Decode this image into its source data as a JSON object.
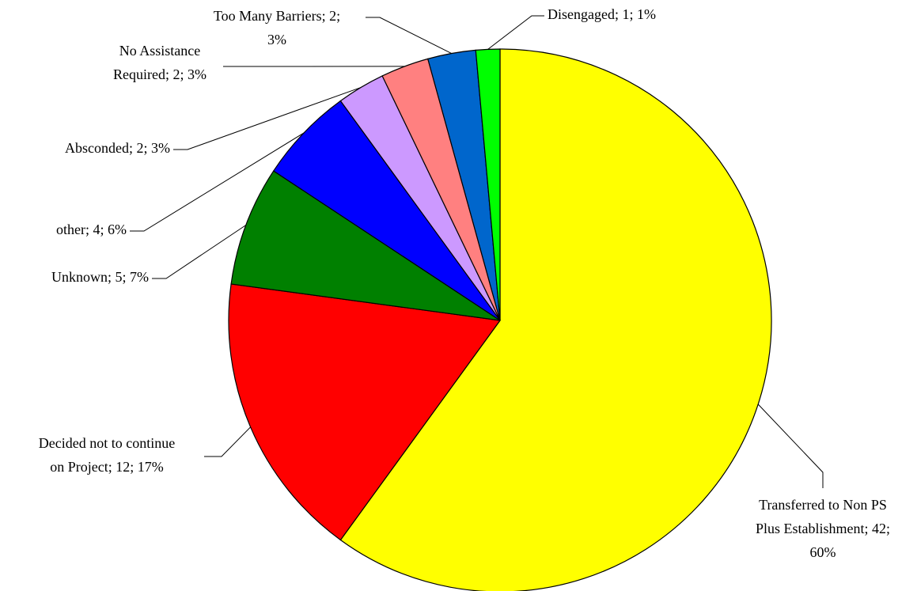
{
  "chart_data": {
    "type": "pie",
    "values": [
      42,
      12,
      5,
      4,
      2,
      2,
      2,
      1
    ],
    "value_labels": [
      [
        "Transferred to Non PS",
        "Plus Establishment; 42;",
        "60%"
      ],
      [
        "Decided not to continue",
        "on Project; 12; 17%"
      ],
      [
        "Unknown; 5; 7%"
      ],
      [
        "other; 4; 6%"
      ],
      [
        "Absconded; 2; 3%"
      ],
      [
        "No Assistance",
        "Required; 2; 3%"
      ],
      [
        "Too Many Barriers; 2;",
        "3%"
      ],
      [
        "Disengaged; 1; 1%"
      ]
    ],
    "colors": [
      "#ffff00",
      "#ff0000",
      "#008000",
      "#0000ff",
      "#cc99ff",
      "#ff8080",
      "#0066cc",
      "#00ff00"
    ]
  }
}
